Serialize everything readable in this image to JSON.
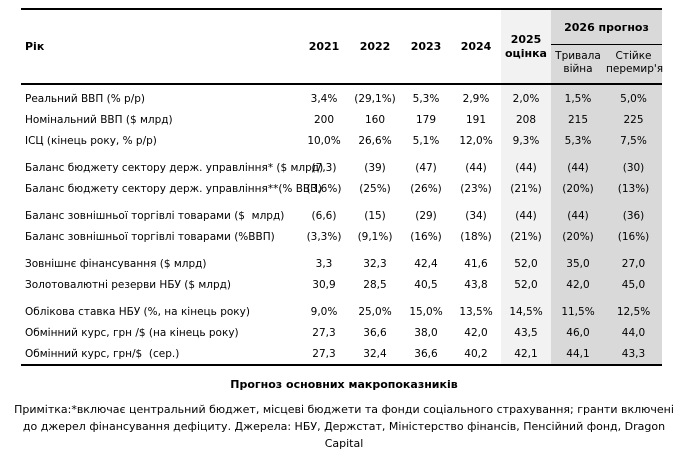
{
  "table": {
    "corner_label": "Рік",
    "year_columns": [
      "2021",
      "2022",
      "2023",
      "2024"
    ],
    "estimate_column": "2025 оцінка",
    "forecast_group": "2026 прогноз",
    "forecast_columns": [
      "Тривала війна",
      "Стійке перемир'я"
    ],
    "rows": [
      {
        "label": "Реальний ВВП (% р/р)",
        "values": [
          "3,4%",
          "(29,1%)",
          "5,3%",
          "2,9%",
          "2,0%",
          "1,5%",
          "5,0%"
        ],
        "group_start": false
      },
      {
        "label": "Номінальний ВВП ($ млрд)",
        "values": [
          "200",
          "160",
          "179",
          "191",
          "208",
          "215",
          "225"
        ],
        "group_start": false
      },
      {
        "label": "ІСЦ (кінець року, % р/р)",
        "values": [
          "10,0%",
          "26,6%",
          "5,1%",
          "12,0%",
          "9,3%",
          "5,3%",
          "7,5%"
        ],
        "group_start": false
      },
      {
        "label": "Баланс бюджету сектору держ. управління* ($ млрд)",
        "values": [
          "(7,3)",
          "(39)",
          "(47)",
          "(44)",
          "(44)",
          "(44)",
          "(30)"
        ],
        "group_start": true
      },
      {
        "label": "Баланс бюджету сектору держ. управління**(% ВВП)",
        "values": [
          "(3,6%)",
          "(25%)",
          "(26%)",
          "(23%)",
          "(21%)",
          "(20%)",
          "(13%)"
        ],
        "group_start": false
      },
      {
        "label": "Баланс зовнішньої торгівлі товарами ($  млрд)",
        "values": [
          "(6,6)",
          "(15)",
          "(29)",
          "(34)",
          "(44)",
          "(44)",
          "(36)"
        ],
        "group_start": true
      },
      {
        "label": "Баланс зовнішньої торгівлі товарами (%ВВП)",
        "values": [
          "(3,3%)",
          "(9,1%)",
          "(16%)",
          "(18%)",
          "(21%)",
          "(20%)",
          "(16%)"
        ],
        "group_start": false
      },
      {
        "label": "Зовнішнє фінансування ($ млрд)",
        "values": [
          "3,3",
          "32,3",
          "42,4",
          "41,6",
          "52,0",
          "35,0",
          "27,0"
        ],
        "group_start": true
      },
      {
        "label": "Золотовалютні резерви НБУ ($ млрд)",
        "values": [
          "30,9",
          "28,5",
          "40,5",
          "43,8",
          "52,0",
          "42,0",
          "45,0"
        ],
        "group_start": false
      },
      {
        "label": "Облікова ставка НБУ (%, на кінець року)",
        "values": [
          "9,0%",
          "25,0%",
          "15,0%",
          "13,5%",
          "14,5%",
          "11,5%",
          "12,5%"
        ],
        "group_start": true
      },
      {
        "label": "Обмінний курс, грн /$ (на кінець року)",
        "values": [
          "27,3",
          "36,6",
          "38,0",
          "42,0",
          "43,5",
          "46,0",
          "44,0"
        ],
        "group_start": false
      },
      {
        "label": "Обмінний курс, грн/$  (сер.)",
        "values": [
          "27,3",
          "32,4",
          "36,6",
          "40,2",
          "42,1",
          "44,1",
          "43,3"
        ],
        "group_start": false
      }
    ]
  },
  "caption": "Прогноз основних макропоказників",
  "note": "Примітка:*включає центральний бюджет, місцеві бюджети та фонди соціального страхування; гранти включені до джерел фінансування дефіциту. Джерела: НБУ, Держстат, Міністерство фінансів, Пенсійний фонд, Dragon Capital",
  "colors": {
    "estimate_bg": "#f2f2f2",
    "forecast_bg": "#d9d9d9",
    "border": "#000000"
  }
}
